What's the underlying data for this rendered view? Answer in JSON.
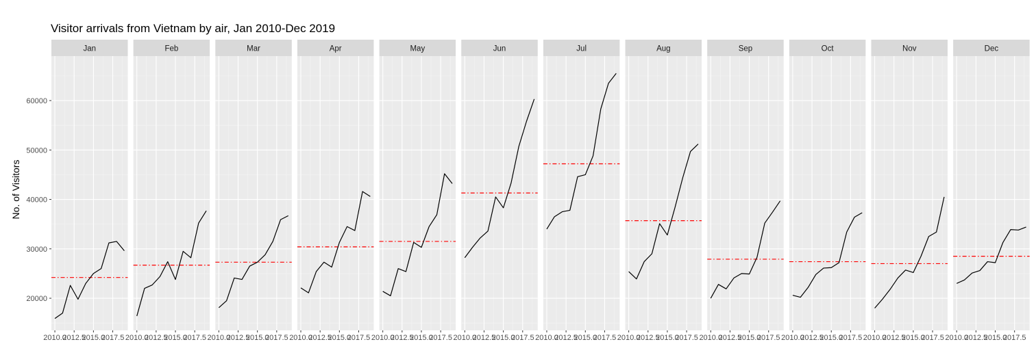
{
  "chart_data": {
    "type": "line",
    "title": "Visitor arrivals from Vietnam by air, Jan 2010-Dec 2019",
    "xlabel": "",
    "ylabel": "No. of Visitors",
    "x_ticks": [
      "2010.0",
      "2012.5",
      "2015.0",
      "2017.5"
    ],
    "y_ticks": [
      "20000",
      "30000",
      "40000",
      "50000",
      "60000"
    ],
    "ylim": [
      13500,
      69000
    ],
    "xlim": [
      2009.55,
      2019.45
    ],
    "grid": true,
    "mean_line_color": "#ff0000",
    "series_color": "#000000",
    "x": [
      2010,
      2011,
      2012,
      2013,
      2014,
      2015,
      2016,
      2017,
      2018,
      2019
    ],
    "panels": [
      {
        "month": "Jan",
        "values": [
          15900,
          17000,
          22600,
          19800,
          23000,
          25000,
          26000,
          31200,
          31500,
          29600
        ],
        "mean": 24200
      },
      {
        "month": "Feb",
        "values": [
          16400,
          22000,
          22700,
          24400,
          27400,
          23800,
          29500,
          28200,
          35200,
          37700
        ],
        "mean": 26700
      },
      {
        "month": "Mar",
        "values": [
          18100,
          19500,
          24100,
          23800,
          26500,
          27300,
          28800,
          31500,
          35900,
          36700
        ],
        "mean": 27300
      },
      {
        "month": "Apr",
        "values": [
          22100,
          21100,
          25400,
          27300,
          26300,
          31300,
          34500,
          33700,
          41600,
          40600
        ],
        "mean": 30400
      },
      {
        "month": "May",
        "values": [
          21400,
          20500,
          26000,
          25400,
          31300,
          30300,
          34500,
          36900,
          45200,
          43200
        ],
        "mean": 31500
      },
      {
        "month": "Jun",
        "values": [
          28200,
          30300,
          32200,
          33600,
          40500,
          38300,
          43300,
          50700,
          55800,
          60300
        ],
        "mean": 41300
      },
      {
        "month": "Jul",
        "values": [
          34000,
          36500,
          37500,
          37800,
          44600,
          45000,
          48800,
          58300,
          63500,
          65500
        ],
        "mean": 47200
      },
      {
        "month": "Aug",
        "values": [
          25400,
          23900,
          27400,
          29000,
          35100,
          32800,
          38400,
          44400,
          49700,
          51200
        ],
        "mean": 35700
      },
      {
        "month": "Sep",
        "values": [
          20000,
          22800,
          21900,
          24100,
          25000,
          24900,
          28300,
          35200,
          37400,
          39700
        ],
        "mean": 27900
      },
      {
        "month": "Oct",
        "values": [
          20600,
          20200,
          22200,
          24800,
          26100,
          26200,
          27200,
          33400,
          36400,
          37300
        ],
        "mean": 27400
      },
      {
        "month": "Nov",
        "values": [
          18000,
          19800,
          21800,
          24100,
          25700,
          25200,
          28500,
          32500,
          33400,
          40500
        ],
        "mean": 27000
      },
      {
        "month": "Dec",
        "values": [
          23000,
          23700,
          25100,
          25600,
          27400,
          27200,
          31300,
          33900,
          33800,
          34400
        ],
        "mean": 28500
      }
    ]
  }
}
